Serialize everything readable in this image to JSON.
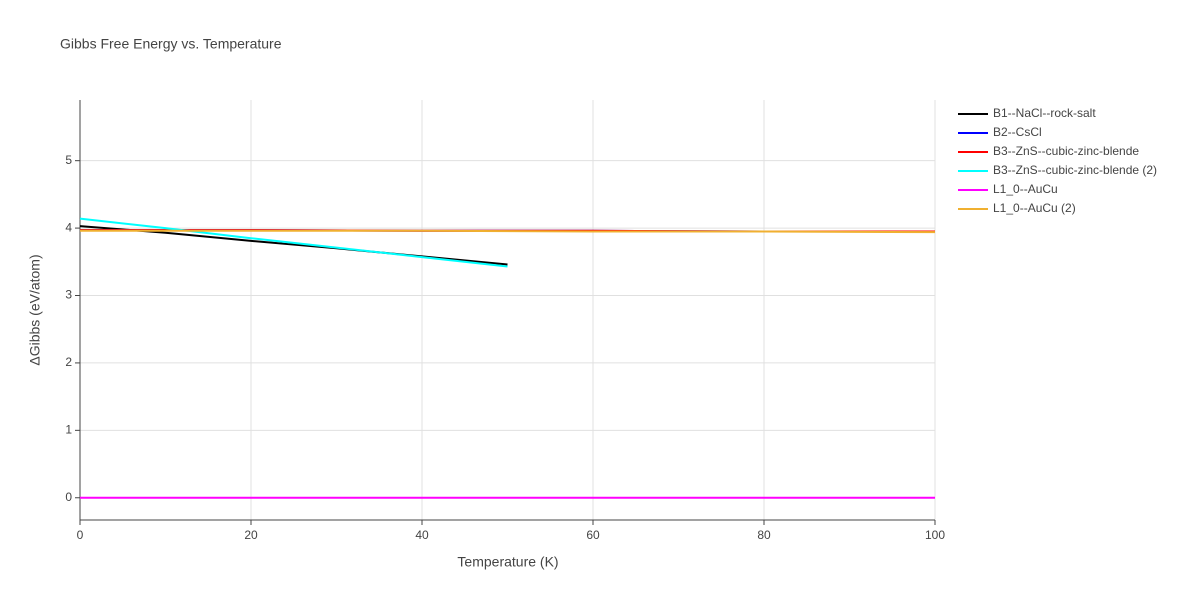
{
  "chart_data": {
    "type": "line",
    "title": "Gibbs Free Energy vs. Temperature",
    "xlabel": "Temperature (K)",
    "ylabel": "ΔGibbs (eV/atom)",
    "xlim": [
      0,
      100
    ],
    "xticks": [
      0,
      20,
      40,
      60,
      80,
      100
    ],
    "ylim": [
      -0.33,
      5.9
    ],
    "yticks": [
      0,
      1,
      2,
      3,
      4,
      5
    ],
    "grid": true,
    "legend": "right",
    "series": [
      {
        "name": "B1--NaCl--rock-salt",
        "color": "#000000",
        "x": [
          0,
          10,
          20,
          30,
          40,
          50
        ],
        "values": [
          4.03,
          3.93,
          3.81,
          3.7,
          3.58,
          3.46
        ]
      },
      {
        "name": "B2--CsCl",
        "color": "#0000ff",
        "x": [
          0,
          20,
          40,
          60,
          80,
          100
        ],
        "values": [
          3.97,
          3.97,
          3.96,
          3.96,
          3.95,
          3.95
        ]
      },
      {
        "name": "B3--ZnS--cubic-zinc-blende",
        "color": "#ff0000",
        "x": [
          0,
          20,
          40,
          60,
          80,
          100
        ],
        "values": [
          3.97,
          3.97,
          3.96,
          3.96,
          3.95,
          3.95
        ]
      },
      {
        "name": "B3--ZnS--cubic-zinc-blende (2)",
        "color": "#00ffff",
        "x": [
          0,
          10,
          20,
          30,
          40,
          50
        ],
        "values": [
          4.14,
          4.0,
          3.85,
          3.71,
          3.57,
          3.43
        ]
      },
      {
        "name": "L1_0--AuCu",
        "color": "#ff00ff",
        "x": [
          0,
          20,
          40,
          60,
          80,
          100
        ],
        "values": [
          0,
          0,
          0,
          0,
          0,
          0
        ]
      },
      {
        "name": "L1_0--AuCu (2)",
        "color": "#f0b030",
        "x": [
          0,
          20,
          40,
          60,
          80,
          100
        ],
        "values": [
          3.96,
          3.96,
          3.96,
          3.95,
          3.95,
          3.94
        ]
      }
    ]
  }
}
